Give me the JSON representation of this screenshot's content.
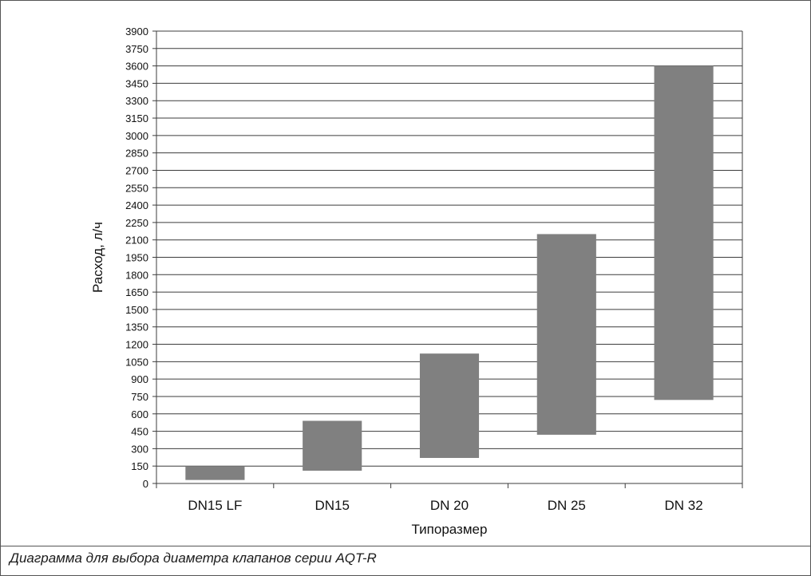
{
  "chart_data": {
    "type": "bar",
    "subtype": "floating-range",
    "categories": [
      "DN15 LF",
      "DN15",
      "DN 20",
      "DN 25",
      "DN 32"
    ],
    "series": [
      {
        "ranges": [
          [
            30,
            150
          ],
          [
            110,
            540
          ],
          [
            220,
            1120
          ],
          [
            420,
            2150
          ],
          [
            720,
            3600
          ]
        ]
      }
    ],
    "xlabel": "Типоразмер",
    "ylabel": "Расход, л/ч",
    "ylim": [
      0,
      3900
    ],
    "yticks": [
      0,
      150,
      300,
      450,
      600,
      750,
      900,
      1050,
      1200,
      1350,
      1500,
      1650,
      1800,
      1950,
      2100,
      2250,
      2400,
      2550,
      2700,
      2850,
      3000,
      3150,
      3300,
      3450,
      3600,
      3750,
      3900
    ],
    "grid": true,
    "legend": "none",
    "bar_color": "#808080"
  },
  "caption": "Диаграмма для выбора диаметра клапанов серии AQT-R"
}
